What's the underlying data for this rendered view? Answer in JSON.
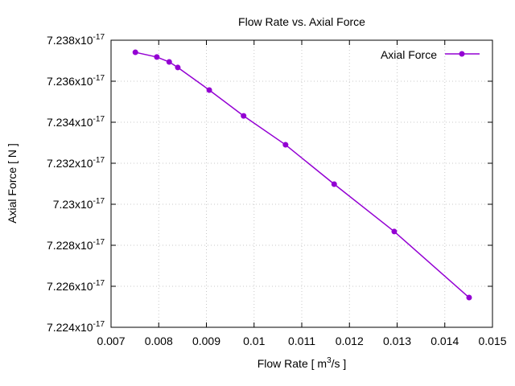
{
  "chart_data": {
    "type": "line",
    "title": "Flow Rate vs. Axial Force",
    "xlabel": {
      "pre": "Flow Rate [ m",
      "sup": "3",
      "post": "/s ]"
    },
    "ylabel": "Axial Force [ N ]",
    "xlim": [
      0.007,
      0.015
    ],
    "ylim": [
      7.224,
      7.238
    ],
    "y_exponent": "-17",
    "y_multiplier_text": "x10",
    "xticks": [
      "0.007",
      "0.008",
      "0.009",
      "0.01",
      "0.011",
      "0.012",
      "0.013",
      "0.014",
      "0.015"
    ],
    "xtick_values": [
      0.007,
      0.008,
      0.009,
      0.01,
      0.011,
      0.012,
      0.013,
      0.014,
      0.015
    ],
    "yticks": [
      "7.238",
      "7.236",
      "7.234",
      "7.232",
      "7.23",
      "7.228",
      "7.226",
      "7.224"
    ],
    "ytick_values": [
      7.238,
      7.236,
      7.234,
      7.232,
      7.23,
      7.228,
      7.226,
      7.224
    ],
    "grid": true,
    "legend_position": "top-right",
    "series": [
      {
        "name": "Axial Force",
        "color": "#9400d3",
        "x": [
          0.00751,
          0.00796,
          0.00822,
          0.0084,
          0.00906,
          0.00978,
          0.01066,
          0.01168,
          0.01294,
          0.01451
        ],
        "y": [
          7.23741,
          7.23718,
          7.23694,
          7.23667,
          7.23557,
          7.23431,
          7.2329,
          7.23098,
          7.22867,
          7.22545
        ]
      }
    ]
  }
}
